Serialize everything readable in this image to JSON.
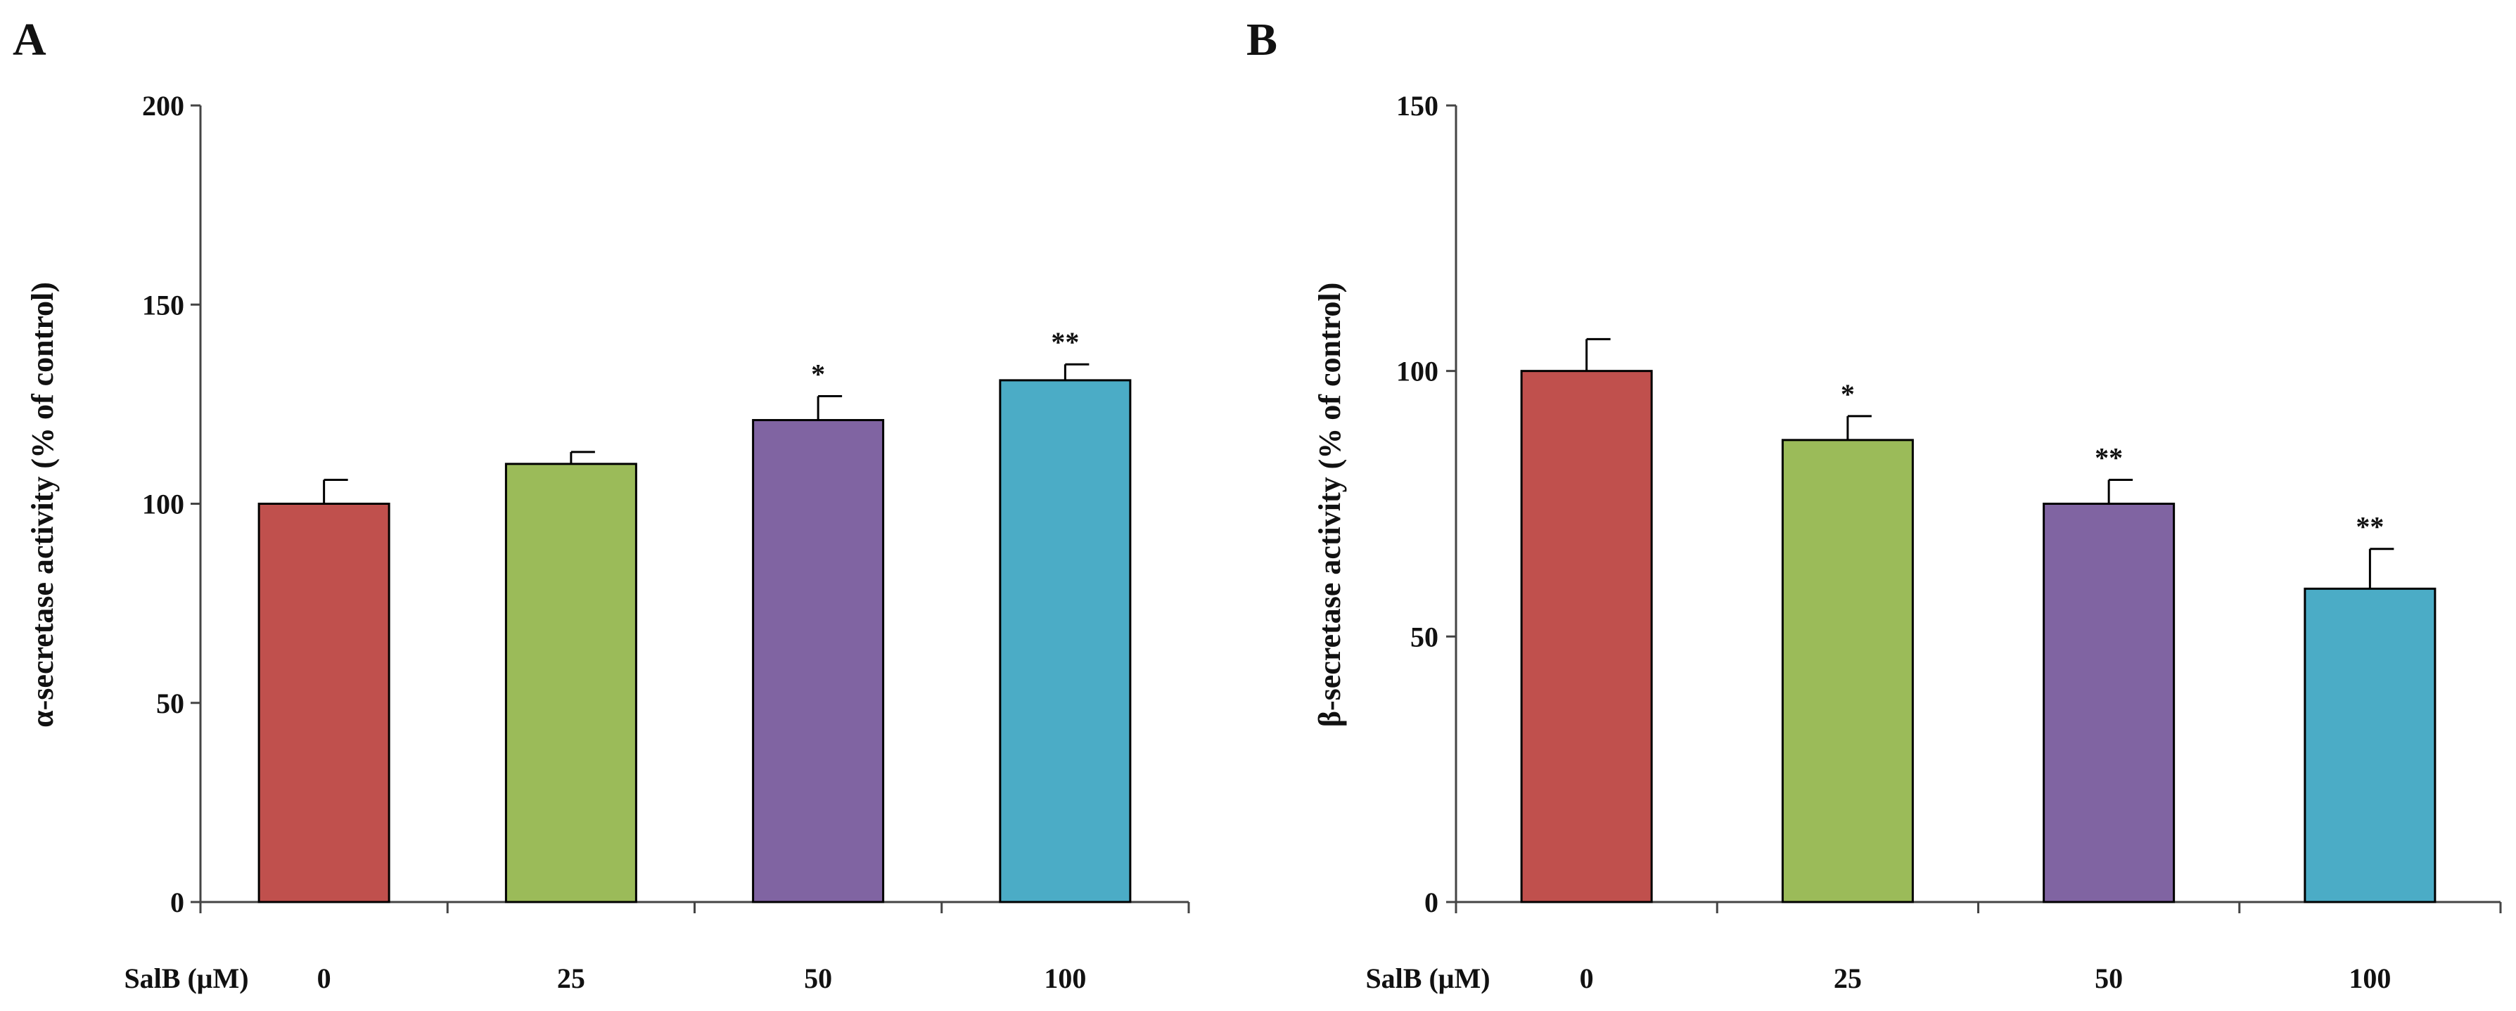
{
  "chart_data": [
    {
      "type": "bar",
      "panel": "A",
      "ylabel": "α-secretase activity (% of control)",
      "xlabel": "SalB (μM)",
      "categories": [
        "0",
        "25",
        "50",
        "100"
      ],
      "values": [
        100,
        110,
        121,
        131
      ],
      "errors": [
        6,
        3,
        6,
        4
      ],
      "significance": [
        "",
        "",
        "*",
        "**"
      ],
      "colors": [
        "#c0504d",
        "#9bbb59",
        "#8064a2",
        "#4bacc6"
      ],
      "ylim": [
        0,
        200
      ],
      "yticks": [
        0,
        50,
        100,
        150,
        200
      ]
    },
    {
      "type": "bar",
      "panel": "B",
      "ylabel": "β-secretase activity (% of control)",
      "xlabel": "SalB (μM)",
      "categories": [
        "0",
        "25",
        "50",
        "100"
      ],
      "values": [
        100,
        87,
        75,
        59
      ],
      "errors": [
        6,
        4.5,
        4.5,
        7.5
      ],
      "significance": [
        "",
        "*",
        "**",
        "**"
      ],
      "colors": [
        "#c0504d",
        "#9bbb59",
        "#8064a2",
        "#4bacc6"
      ],
      "ylim": [
        0,
        150
      ],
      "yticks": [
        0,
        50,
        100,
        150
      ]
    }
  ]
}
